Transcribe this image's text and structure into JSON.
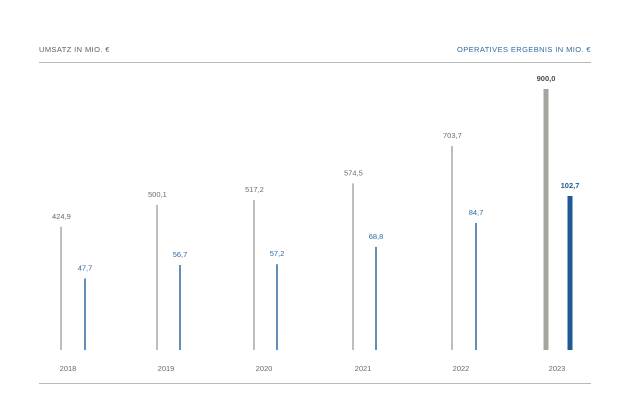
{
  "header": {
    "left_title": "UMSATZ IN MIO. €",
    "right_title": "OPERATIVES ERGEBNIS IN MIO. €"
  },
  "chart_data": {
    "type": "bar",
    "categories": [
      "2018",
      "2019",
      "2020",
      "2021",
      "2022",
      "2023"
    ],
    "series": [
      {
        "name": "UMSATZ IN MIO. €",
        "values": [
          424.9,
          500.1,
          517.2,
          574.5,
          703.7,
          900.0
        ],
        "labels": [
          "424,9",
          "500,1",
          "517,2",
          "574,5",
          "703,7",
          "900,0"
        ],
        "color": "#a9a9a9"
      },
      {
        "name": "OPERATIVES ERGEBNIS IN MIO. €",
        "values": [
          47.7,
          56.7,
          57.2,
          68.8,
          84.7,
          102.7
        ],
        "labels": [
          "47,7",
          "56,7",
          "57,2",
          "68,8",
          "84,7",
          "102,7"
        ],
        "color": "#2e6aa0"
      }
    ],
    "highlight_category": "2023",
    "highlight_colors": {
      "gray": "#a5a5a0",
      "blue": "#1f5a94"
    }
  }
}
